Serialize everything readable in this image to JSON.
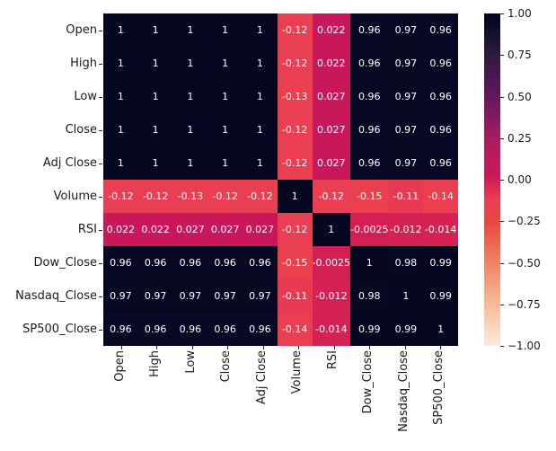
{
  "chart_data": {
    "type": "heatmap",
    "title": "",
    "labels": [
      "Open",
      "High",
      "Low",
      "Close",
      "Adj Close",
      "Volume",
      "RSI",
      "Dow_Close",
      "Nasdaq_Close",
      "SP500_Close"
    ],
    "matrix": [
      [
        1,
        1,
        1,
        1,
        1,
        -0.12,
        0.022,
        0.96,
        0.97,
        0.96
      ],
      [
        1,
        1,
        1,
        1,
        1,
        -0.12,
        0.022,
        0.96,
        0.97,
        0.96
      ],
      [
        1,
        1,
        1,
        1,
        1,
        -0.13,
        0.027,
        0.96,
        0.97,
        0.96
      ],
      [
        1,
        1,
        1,
        1,
        1,
        -0.12,
        0.027,
        0.96,
        0.97,
        0.96
      ],
      [
        1,
        1,
        1,
        1,
        1,
        -0.12,
        0.027,
        0.96,
        0.97,
        0.96
      ],
      [
        -0.12,
        -0.12,
        -0.13,
        -0.12,
        -0.12,
        1,
        -0.12,
        -0.15,
        -0.11,
        -0.14
      ],
      [
        0.022,
        0.022,
        0.027,
        0.027,
        0.027,
        -0.12,
        1,
        -0.0025,
        -0.012,
        -0.014
      ],
      [
        0.96,
        0.96,
        0.96,
        0.96,
        0.96,
        -0.15,
        -0.0025,
        1,
        0.98,
        0.99
      ],
      [
        0.97,
        0.97,
        0.97,
        0.97,
        0.97,
        -0.11,
        -0.012,
        0.98,
        1,
        0.99
      ],
      [
        0.96,
        0.96,
        0.96,
        0.96,
        0.96,
        -0.14,
        -0.014,
        0.99,
        0.99,
        1
      ]
    ],
    "vmin": -1,
    "vmax": 1,
    "colorbar_tick_labels": [
      "1.00",
      "0.75",
      "0.50",
      "0.25",
      "0.00",
      "−0.25",
      "−0.50",
      "−0.75",
      "−1.00"
    ],
    "colorbar_tick_values": [
      1.0,
      0.75,
      0.5,
      0.25,
      0.0,
      -0.25,
      -0.5,
      -0.75,
      -1.0
    ],
    "legend_position": "right",
    "grid": false,
    "annotation_color": "#ffffff",
    "tick_label_color": "#1a1a1a",
    "background_color": "#ffffff",
    "colormap_name": "rocket-reversed",
    "colormap_stops": [
      {
        "v": 1.0,
        "c": "#04061f"
      },
      {
        "v": 0.96,
        "c": "#070823"
      },
      {
        "v": 0.9,
        "c": "#120e2c"
      },
      {
        "v": 0.75,
        "c": "#2f1a3b"
      },
      {
        "v": 0.6,
        "c": "#4b1853"
      },
      {
        "v": 0.5,
        "c": "#63175c"
      },
      {
        "v": 0.38,
        "c": "#82195f"
      },
      {
        "v": 0.25,
        "c": "#a81d5e"
      },
      {
        "v": 0.1,
        "c": "#c01b5b"
      },
      {
        "v": 0.02,
        "c": "#c9185a"
      },
      {
        "v": 0.0,
        "c": "#d01e53"
      },
      {
        "v": -0.12,
        "c": "#ea3e53"
      },
      {
        "v": -0.25,
        "c": "#e8473d"
      },
      {
        "v": -0.5,
        "c": "#ef8365"
      },
      {
        "v": -0.75,
        "c": "#f6bb97"
      },
      {
        "v": -1.0,
        "c": "#faebdd"
      }
    ]
  }
}
